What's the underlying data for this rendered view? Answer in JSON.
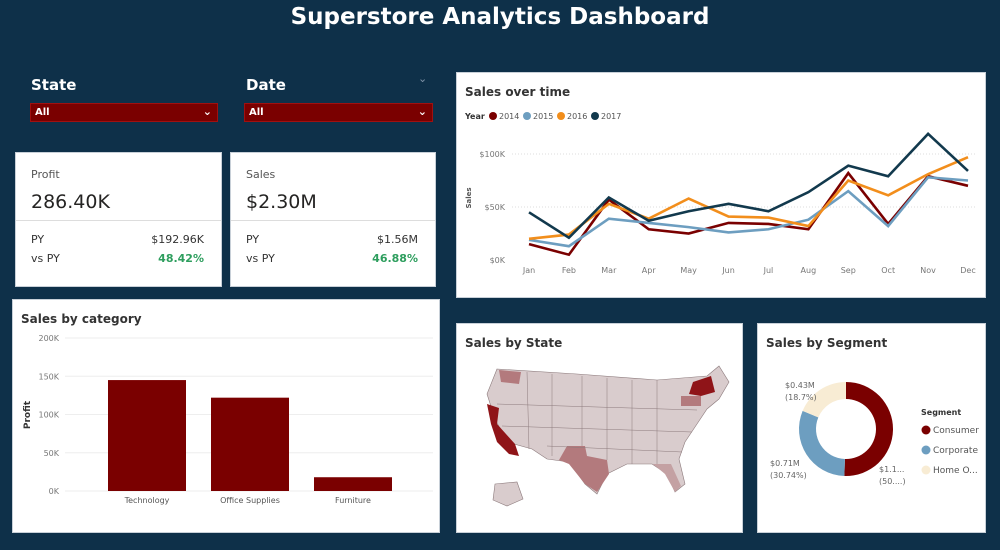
{
  "header": {
    "title": "Superstore Analytics Dashboard"
  },
  "filters": [
    {
      "label": "State",
      "value": "All"
    },
    {
      "label": "Date",
      "value": "All"
    }
  ],
  "kpis": [
    {
      "label": "Profit",
      "value": "286.40K",
      "py_label": "PY",
      "py_value": "$192.96K",
      "vs_label": "vs PY",
      "vs_value": "48.42%"
    },
    {
      "label": "Sales",
      "value": "$2.30M",
      "py_label": "PY",
      "py_value": "$1.56M",
      "vs_label": "vs PY",
      "vs_value": "46.88%"
    }
  ],
  "colors": {
    "background": "#0e3049",
    "accent": "#7a0000",
    "positive": "#2e9e5e"
  },
  "chart_data": [
    {
      "type": "line",
      "title": "Sales over time",
      "legend_title": "Year",
      "legend_position": "top-left",
      "ylabel": "Sales",
      "ylim": [
        0,
        120000
      ],
      "yticks": [
        "$0K",
        "$50K",
        "$100K"
      ],
      "x": [
        "Jan",
        "Feb",
        "Mar",
        "Apr",
        "May",
        "Jun",
        "Jul",
        "Aug",
        "Sep",
        "Oct",
        "Nov",
        "Dec"
      ],
      "series": [
        {
          "name": "2014",
          "color": "#7a0000",
          "values": [
            15,
            5,
            57,
            29,
            25,
            35,
            34,
            29,
            82,
            34,
            79,
            70
          ]
        },
        {
          "name": "2015",
          "color": "#6d9ec0",
          "values": [
            19,
            13,
            39,
            35,
            31,
            26,
            29,
            38,
            65,
            32,
            78,
            75
          ]
        },
        {
          "name": "2016",
          "color": "#f28e1c",
          "values": [
            20,
            24,
            53,
            39,
            58,
            41,
            40,
            32,
            75,
            61,
            81,
            97
          ]
        },
        {
          "name": "2017",
          "color": "#12394d",
          "values": [
            45,
            21,
            59,
            37,
            46,
            53,
            46,
            64,
            89,
            79,
            119,
            84
          ]
        }
      ],
      "units": "thousands USD"
    },
    {
      "type": "bar",
      "title": "Sales by category",
      "ylabel": "Profit",
      "ylim": [
        0,
        200000
      ],
      "yticks": [
        "0K",
        "50K",
        "100K",
        "150K",
        "200K"
      ],
      "categories": [
        "Technology",
        "Office Supplies",
        "Furniture"
      ],
      "values": [
        145000,
        122000,
        18000
      ],
      "color": "#7a0000"
    },
    {
      "type": "pie",
      "title": "Sales by Segment",
      "legend_title": "Segment",
      "legend_position": "right",
      "categories": [
        "Consumer",
        "Corporate",
        "Home O..."
      ],
      "values": [
        50.56,
        30.74,
        18.7
      ],
      "labels": [
        [
          "$1.1...",
          "(50....)"
        ],
        [
          "$0.71M",
          "(30.74%)"
        ],
        [
          "$0.43M",
          "(18.7%)"
        ]
      ],
      "colors": [
        "#7a0000",
        "#6d9ec0",
        "#f8ecd4"
      ]
    }
  ],
  "map": {
    "title": "Sales by State"
  }
}
